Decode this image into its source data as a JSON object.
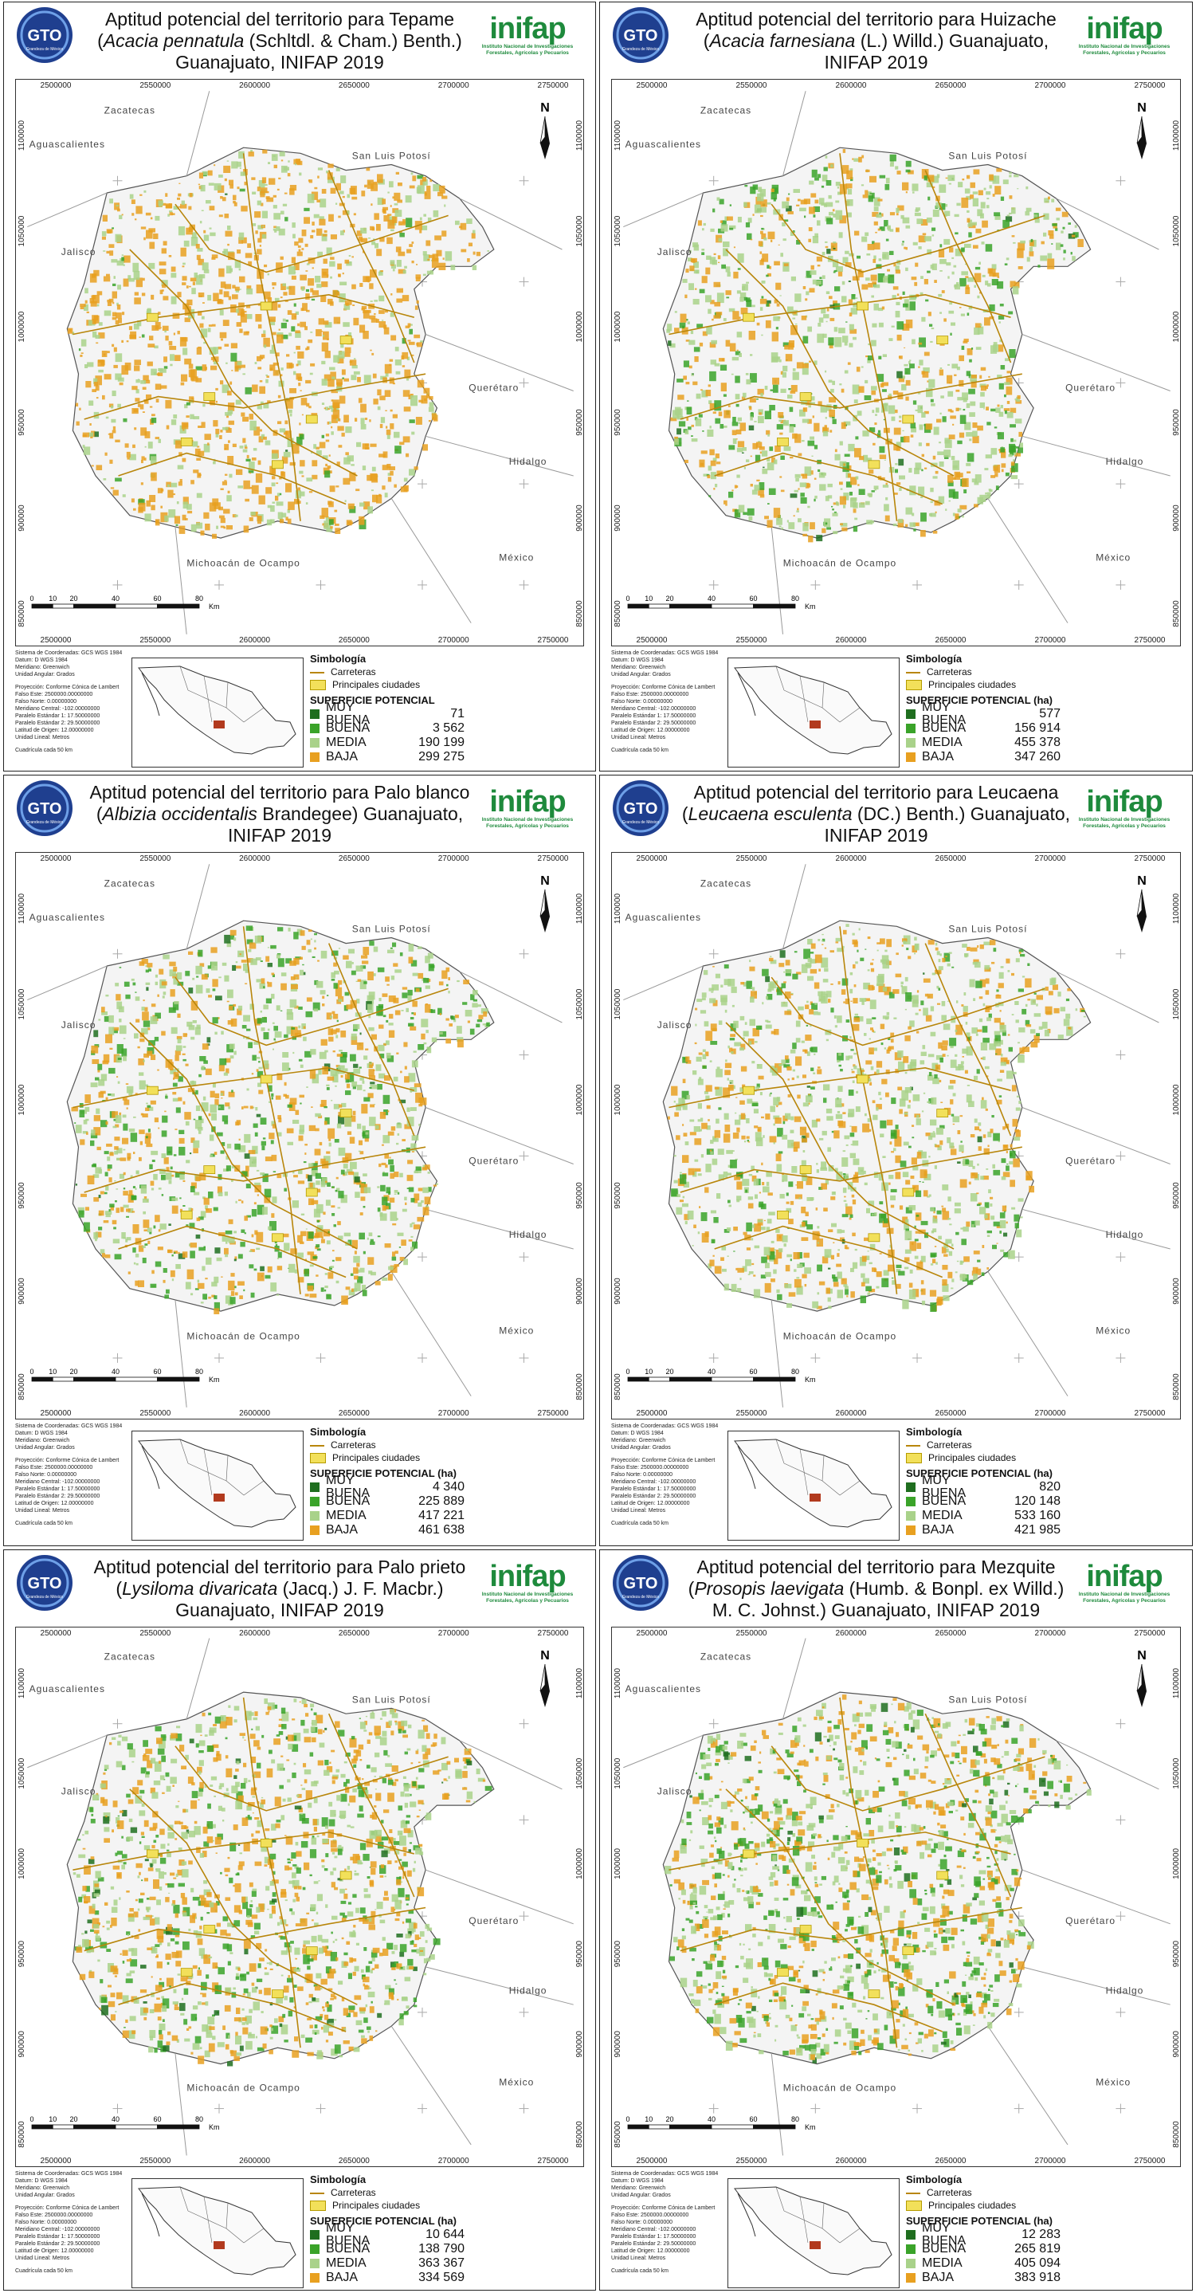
{
  "common": {
    "logo_text": "GTO",
    "logo_sub": "Grandeza de México",
    "inifap_word": "inifap",
    "inifap_sub1": "Instituto Nacional de Investigaciones",
    "inifap_sub2": "Forestales, Agrícolas y Pecuarios",
    "coords_x": [
      "2500000",
      "2550000",
      "2600000",
      "2650000",
      "2700000",
      "2750000"
    ],
    "coords_y": [
      "1100000",
      "1050000",
      "1000000",
      "950000",
      "900000",
      "850000"
    ],
    "places": {
      "zacatecas": "Zacatecas",
      "aguascalientes": "Aguascalientes",
      "slp": "San Luis Potosí",
      "jalisco": "Jalisco",
      "queretaro": "Querétaro",
      "hidalgo": "Hidalgo",
      "mexico": "México",
      "michoacan": "Michoacán de Ocampo"
    },
    "north": "N",
    "scale_ticks": [
      "0",
      "10",
      "20",
      "40",
      "60",
      "80"
    ],
    "scale_unit": "Km",
    "simbologia": "Simbología",
    "carreteras": "Carreteras",
    "ciudades": "Principales ciudades",
    "proj_lines_a": [
      "Sistema de Coordenadas: GCS WGS 1984",
      "Datum: D WGS 1984",
      "Meridiano: Greenwich",
      "Unidad Angular: Grados"
    ],
    "proj_lines_b": [
      "Proyección: Conforme Cónica de Lambert",
      "Falso Este: 2500000.00000000",
      "Falso Norte: 0.00000000",
      "Meridiano Central: -102.00000000",
      "Paralelo Estándar 1: 17.50000000",
      "Paralelo Estándar 2: 29.50000000",
      "Latitud de Origen: 12.00000000",
      "Unidad Lineal: Metros"
    ],
    "cuadricula": "Cuadrícula cada 50 km",
    "levels": [
      "MUY BUENA",
      "BUENA",
      "MEDIA",
      "BAJA"
    ],
    "colors": {
      "muy_buena": "#1f6e1f",
      "buena": "#3aa329",
      "media": "#a9d28a",
      "baja": "#e8a020",
      "road": "#b8860b",
      "city": "#f2e05a",
      "border": "#999999",
      "state_fill": "#f4f4f4"
    }
  },
  "panels": [
    {
      "title_pre": "Aptitud potencial del territorio para Tepame (",
      "species": "Acacia pennatula",
      "title_post": " (Schltdl. & Cham.) Benth.) Guanajuato, INIFAP 2019",
      "sup_label": "SUPERFICIE POTENCIAL",
      "values": [
        "71",
        "3 562",
        "190 199",
        "299 275"
      ],
      "mix": [
        0.005,
        0.04,
        0.31,
        0.645
      ]
    },
    {
      "title_pre": "Aptitud potencial del territorio para Huizache (",
      "species": "Acacia farnesiana",
      "title_post": " (L.) Willd.) Guanajuato, INIFAP 2019",
      "sup_label": "SUPERFICIE POTENCIAL (ha)",
      "values": [
        "577",
        "156 914",
        "455 378",
        "347 260"
      ],
      "mix": [
        0.01,
        0.2,
        0.45,
        0.34
      ]
    },
    {
      "title_pre": "Aptitud potencial del territorio para Palo blanco (",
      "species": "Albizia occidentalis",
      "title_post": " Brandegee) Guanajuato, INIFAP 2019",
      "sup_label": "SUPERFICIE POTENCIAL (ha)",
      "values": [
        "4 340",
        "225 889",
        "417 221",
        "461 638"
      ],
      "mix": [
        0.02,
        0.25,
        0.35,
        0.38
      ]
    },
    {
      "title_pre": "Aptitud potencial del territorio para Leucaena (",
      "species": "Leucaena esculenta",
      "title_post": " (DC.) Benth.) Guanajuato, INIFAP 2019",
      "sup_label": "SUPERFICIE POTENCIAL (ha)",
      "values": [
        "820",
        "120 148",
        "533 160",
        "421 985"
      ],
      "mix": [
        0.01,
        0.16,
        0.48,
        0.35
      ]
    },
    {
      "title_pre": "Aptitud potencial del territorio para Palo prieto (",
      "species": "Lysiloma divaricata",
      "title_post": " (Jacq.) J. F. Macbr.) Guanajuato, INIFAP 2019",
      "sup_label": "SUPERFICIE POTENCIAL (ha)",
      "values": [
        "10 644",
        "138 790",
        "363 367",
        "334 569"
      ],
      "mix": [
        0.03,
        0.22,
        0.35,
        0.4
      ]
    },
    {
      "title_pre": "Aptitud potencial del territorio para Mezquite (",
      "species": "Prosopis laevigata",
      "title_post": " (Humb. & Bonpl. ex Willd.) M. C. Johnst.) Guanajuato, INIFAP 2019",
      "sup_label": "SUPERFICIE POTENCIAL (ha)",
      "values": [
        "12 283",
        "265 819",
        "405 094",
        "383 918"
      ],
      "mix": [
        0.03,
        0.3,
        0.35,
        0.32
      ]
    }
  ]
}
